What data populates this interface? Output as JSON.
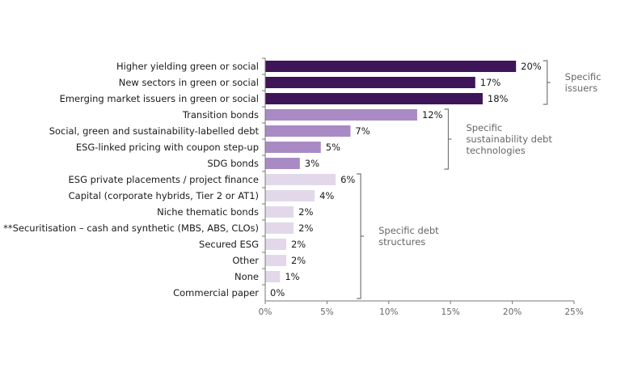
{
  "chart_data": {
    "type": "bar",
    "orientation": "horizontal",
    "title": "",
    "xlabel": "",
    "ylabel": "",
    "xlim": [
      0,
      25
    ],
    "grid": false,
    "categories": [
      "Higher yielding green or social",
      "New sectors in green or social",
      "Emerging market issuers in green or social",
      "Transition bonds",
      "Social, green and sustainability-labelled debt",
      "ESG-linked pricing with coupon step-up ",
      "SDG bonds",
      "ESG private placements / project finance",
      "Capital (corporate hybrids, Tier 2 or AT1)",
      "Niche thematic bonds",
      "**Securitisation – cash and synthetic (MBS, ABS, CLOs)",
      "Secured ESG",
      "Other",
      "None",
      "Commercial paper"
    ],
    "values": [
      20.3,
      17.0,
      17.6,
      12.3,
      6.9,
      4.5,
      2.8,
      5.7,
      4.0,
      2.3,
      2.3,
      1.7,
      1.7,
      1.2,
      0
    ],
    "value_labels": [
      "20%",
      "17%",
      "18%",
      "12%",
      "7%",
      "5%",
      "3%",
      "6%",
      "4%",
      "2%",
      "2%",
      "2%",
      "2%",
      "1%",
      "0%"
    ],
    "x_ticks": [
      0,
      5,
      10,
      15,
      20,
      25
    ],
    "x_tick_labels": [
      "0%",
      "5%",
      "10%",
      "15%",
      "20%",
      "25%"
    ],
    "groups": [
      {
        "name": "Specific issuers",
        "lines": [
          "Specific",
          "issuers"
        ],
        "start": 0,
        "end": 2,
        "color": "#3e1558"
      },
      {
        "name": "Specific sustainability debt technologies",
        "lines": [
          "Specific",
          "sustainability debt",
          "technologies"
        ],
        "start": 3,
        "end": 6,
        "color": "#a98ac4"
      },
      {
        "name": "Specific debt structures",
        "lines": [
          "Specific debt",
          "structures"
        ],
        "start": 7,
        "end": 14,
        "color": "#e3d8ea"
      }
    ]
  }
}
